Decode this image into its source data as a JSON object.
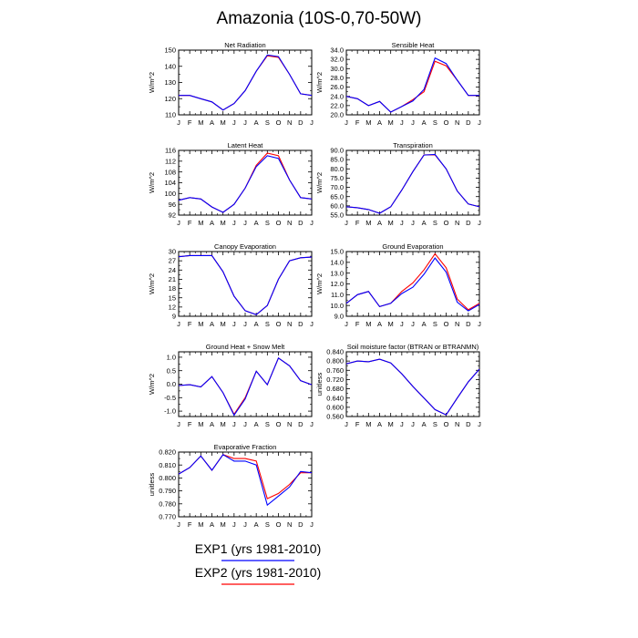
{
  "title": "Amazonia (10S-0,70-50W)",
  "legend": [
    {
      "label": "EXP1 (yrs 1981-2010)",
      "color": "#0000ff"
    },
    {
      "label": "EXP2 (yrs 1981-2010)",
      "color": "#ff0000"
    }
  ],
  "months": [
    "J",
    "F",
    "M",
    "A",
    "M",
    "J",
    "J",
    "A",
    "S",
    "O",
    "N",
    "D",
    "J"
  ],
  "chart_data": [
    {
      "type": "line",
      "title": "Net Radiation",
      "ylabel": "W/m^2",
      "ylim": [
        110,
        150
      ],
      "yticks": [
        "110",
        "120",
        "130",
        "140",
        "150"
      ],
      "series": [
        {
          "name": "EXP1 (yrs 1981-2010)",
          "values": [
            122,
            122,
            120,
            118,
            113,
            117,
            125,
            137,
            147,
            146,
            135,
            123,
            122
          ]
        },
        {
          "name": "EXP2 (yrs 1981-2010)",
          "values": [
            122,
            122,
            120,
            118,
            113,
            117,
            125,
            137,
            146.5,
            145.5,
            135,
            123,
            122
          ]
        }
      ]
    },
    {
      "type": "line",
      "title": "Sensible Heat",
      "ylabel": "W/m^2",
      "ylim": [
        20,
        34
      ],
      "yticks": [
        "20.0",
        "22.0",
        "24.0",
        "26.0",
        "28.0",
        "30.0",
        "32.0",
        "34.0"
      ],
      "series": [
        {
          "name": "EXP1 (yrs 1981-2010)",
          "values": [
            24,
            23.5,
            22,
            22.9,
            20.6,
            21.8,
            23,
            25.5,
            32.3,
            31.1,
            27.5,
            24.2,
            24.2
          ]
        },
        {
          "name": "EXP2 (yrs 1981-2010)",
          "values": [
            24,
            23.5,
            22,
            22.9,
            20.6,
            21.8,
            23.3,
            25,
            31.6,
            30.6,
            27.5,
            24.2,
            24.2
          ]
        }
      ]
    },
    {
      "type": "line",
      "title": "Latent Heat",
      "ylabel": "W/m^2",
      "ylim": [
        92,
        116
      ],
      "yticks": [
        "92",
        "96",
        "100",
        "104",
        "108",
        "112",
        "116"
      ],
      "series": [
        {
          "name": "EXP1 (yrs 1981-2010)",
          "values": [
            97.5,
            98.5,
            98,
            95,
            93,
            96,
            102,
            110,
            114,
            113,
            105,
            98.5,
            98
          ]
        },
        {
          "name": "EXP2 (yrs 1981-2010)",
          "values": [
            97.5,
            98.5,
            98,
            95,
            93,
            96,
            102,
            110.5,
            115,
            114,
            105,
            98.5,
            98
          ]
        }
      ]
    },
    {
      "type": "line",
      "title": "Transpiration",
      "ylabel": "W/m^2",
      "ylim": [
        55,
        90
      ],
      "yticks": [
        "55.0",
        "60.0",
        "65.0",
        "70.0",
        "75.0",
        "80.0",
        "85.0",
        "90.0"
      ],
      "series": [
        {
          "name": "EXP1 (yrs 1981-2010)",
          "values": [
            59.5,
            59,
            58,
            56,
            59.5,
            68.5,
            78.5,
            87.5,
            87.8,
            80,
            68,
            61,
            59.5
          ]
        },
        {
          "name": "EXP2 (yrs 1981-2010)",
          "values": [
            59.5,
            59,
            58,
            56,
            59.5,
            68.5,
            78.5,
            87.6,
            87.6,
            80,
            68,
            61,
            59.5
          ]
        }
      ]
    },
    {
      "type": "line",
      "title": "Canopy Evaporation",
      "ylabel": "W/m^2",
      "ylim": [
        9,
        30
      ],
      "yticks": [
        "9",
        "12",
        "15",
        "18",
        "21",
        "24",
        "27",
        "30"
      ],
      "series": [
        {
          "name": "EXP1 (yrs 1981-2010)",
          "values": [
            28.3,
            28.7,
            28.7,
            28.7,
            23.5,
            15.5,
            10.8,
            9.5,
            12.5,
            21,
            27,
            28,
            28.2
          ]
        },
        {
          "name": "EXP2 (yrs 1981-2010)",
          "values": [
            28.3,
            28.7,
            28.7,
            28.7,
            23.5,
            15.5,
            10.8,
            9.5,
            12.5,
            21,
            27,
            28,
            28.2
          ]
        }
      ]
    },
    {
      "type": "line",
      "title": "Ground Evaporation",
      "ylabel": "W/m^2",
      "ylim": [
        9,
        15
      ],
      "yticks": [
        "9.0",
        "10.0",
        "11.0",
        "12.0",
        "13.0",
        "14.0",
        "15.0"
      ],
      "series": [
        {
          "name": "EXP1 (yrs 1981-2010)",
          "values": [
            10.2,
            11,
            11.3,
            9.9,
            10.2,
            11.1,
            11.7,
            12.9,
            14.4,
            13.1,
            10.3,
            9.5,
            10.1
          ]
        },
        {
          "name": "EXP2 (yrs 1981-2010)",
          "values": [
            10.2,
            11,
            11.3,
            9.9,
            10.2,
            11.3,
            12.1,
            13.3,
            14.8,
            13.5,
            10.6,
            9.6,
            10.2
          ]
        }
      ]
    },
    {
      "type": "line",
      "title": "Ground Heat + Snow Melt",
      "ylabel": "W/m^2",
      "ylim": [
        -1.2,
        1.2
      ],
      "yticks": [
        "-1.0",
        "-0.5",
        "0.0",
        "0.5",
        "1.0"
      ],
      "series": [
        {
          "name": "EXP1 (yrs 1981-2010)",
          "values": [
            -0.05,
            -0.02,
            -0.1,
            0.28,
            -0.32,
            -1.15,
            -0.55,
            0.48,
            -0.02,
            0.97,
            0.68,
            0.13,
            -0.02
          ]
        },
        {
          "name": "EXP2 (yrs 1981-2010)",
          "values": [
            -0.05,
            -0.02,
            -0.1,
            0.28,
            -0.32,
            -1.12,
            -0.5,
            0.48,
            -0.02,
            0.97,
            0.68,
            0.13,
            -0.02
          ]
        }
      ]
    },
    {
      "type": "line",
      "title": "Soil moisture factor (BTRAN or BTRANMN)",
      "ylabel": "unitless",
      "ylim": [
        0.56,
        0.84
      ],
      "yticks": [
        "0.560",
        "0.600",
        "0.640",
        "0.680",
        "0.720",
        "0.760",
        "0.800",
        "0.840"
      ],
      "series": [
        {
          "name": "EXP1 (yrs 1981-2010)",
          "values": [
            0.788,
            0.8,
            0.797,
            0.808,
            0.792,
            0.745,
            0.69,
            0.64,
            0.59,
            0.567,
            0.64,
            0.71,
            0.765
          ]
        },
        {
          "name": "EXP2 (yrs 1981-2010)",
          "values": [
            0.788,
            0.8,
            0.797,
            0.808,
            0.792,
            0.745,
            0.69,
            0.64,
            0.59,
            0.567,
            0.64,
            0.71,
            0.765
          ]
        }
      ]
    },
    {
      "type": "line",
      "title": "Evaporative Fraction",
      "ylabel": "unitless",
      "ylim": [
        0.77,
        0.82
      ],
      "yticks": [
        "0.770",
        "0.780",
        "0.790",
        "0.800",
        "0.810",
        "0.820"
      ],
      "series": [
        {
          "name": "EXP1 (yrs 1981-2010)",
          "values": [
            0.803,
            0.808,
            0.817,
            0.806,
            0.818,
            0.813,
            0.813,
            0.81,
            0.779,
            0.786,
            0.793,
            0.805,
            0.804
          ]
        },
        {
          "name": "EXP2 (yrs 1981-2010)",
          "values": [
            0.803,
            0.808,
            0.817,
            0.806,
            0.818,
            0.815,
            0.815,
            0.813,
            0.784,
            0.788,
            0.795,
            0.804,
            0.804
          ]
        }
      ]
    }
  ]
}
